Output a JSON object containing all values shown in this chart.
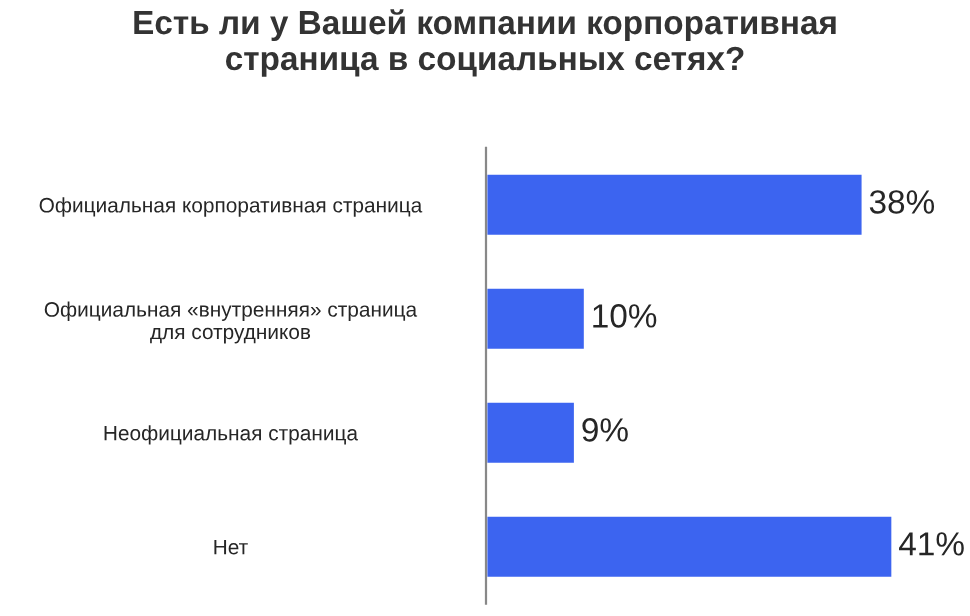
{
  "chart_data": {
    "type": "bar",
    "orientation": "horizontal",
    "title": "Есть ли у Вашей компании корпоративная\nстраница в социальных сетях?",
    "categories": [
      "Официальная корпоративная страница",
      "Официальная «внутренняя» страница\nдля сотрудников",
      "Неофициальная страница",
      "Нет"
    ],
    "values": [
      38,
      10,
      9,
      41
    ],
    "value_labels": [
      "38%",
      "10%",
      "9%",
      "41%"
    ],
    "color": "#3c64f0",
    "grid": false,
    "legend": false
  }
}
